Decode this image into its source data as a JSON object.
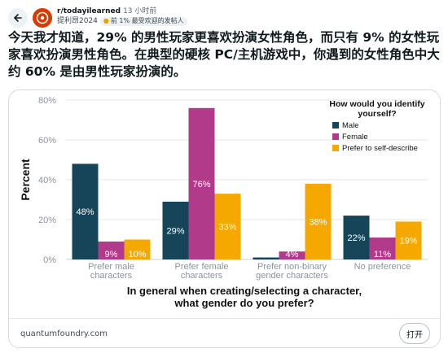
{
  "post": {
    "subreddit": "r/todayilearned",
    "time": "13 小时前",
    "user": "提利昂2024",
    "badge": "前 1% 最受欢迎的发帖人",
    "title": "今天我才知道，29% 的男性玩家更喜欢扮演女性角色，而只有 9% 的女性玩家喜欢扮演男性角色。在典型的硬核 PC/主机游戏中，你遇到的女性角色中大约 60% 是由男性玩家扮演的。",
    "domain": "quantumfoundry.com",
    "open_label": "打开"
  },
  "icons": {
    "back": "arrow-left-icon",
    "avatar": "subreddit-avatar",
    "badge": "trophy-icon"
  },
  "colors": {
    "Male": "#16455a",
    "Female": "#b13a8a",
    "Prefer to self-describe": "#f5a800"
  },
  "chart_data": {
    "type": "bar",
    "categories": [
      [
        "Prefer male",
        "characters"
      ],
      [
        "Prefer female",
        "characters"
      ],
      [
        "Prefer non-binary",
        "gender characters"
      ],
      [
        "No preference"
      ]
    ],
    "series": [
      {
        "name": "Male",
        "values": [
          48,
          29,
          1,
          22
        ],
        "labels": [
          "48%",
          "29%",
          "",
          "22%"
        ]
      },
      {
        "name": "Female",
        "values": [
          9,
          76,
          4,
          11
        ],
        "labels": [
          "9%",
          "76%",
          "4%",
          "11%"
        ]
      },
      {
        "name": "Prefer to self-describe",
        "values": [
          10,
          33,
          38,
          19
        ],
        "labels": [
          "10%",
          "33%",
          "38%",
          "19%"
        ]
      }
    ],
    "legend_title": [
      "How would you identify",
      "yourself?"
    ],
    "ylabel": "Percent",
    "xlabel": [
      "In general when creating/selecting a character,",
      "what gender do you prefer?"
    ],
    "yticks": [
      "0%",
      "20%",
      "40%",
      "60%",
      "80%"
    ],
    "ylim": [
      0,
      80
    ],
    "grid": true,
    "legend_position": "top-right"
  }
}
